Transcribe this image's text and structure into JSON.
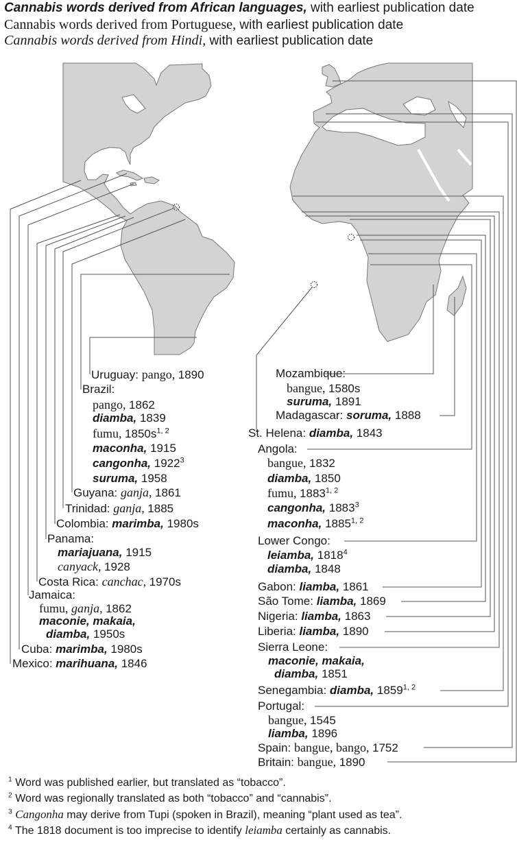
{
  "legend": [
    {
      "segs": [
        [
          "af",
          "Cannabis words derived from African languages,"
        ],
        [
          "n",
          " with earliest publication date"
        ]
      ]
    },
    {
      "segs": [
        [
          "pt",
          "Cannabis words derived from Portuguese,"
        ],
        [
          "n",
          " with earliest publication date"
        ]
      ]
    },
    {
      "segs": [
        [
          "hi",
          "Cannabis words derived from Hindi,"
        ],
        [
          "n",
          " with earliest publication date"
        ]
      ]
    }
  ],
  "colors": {
    "land": "#d3d3d3",
    "coast": "#777777",
    "leader_lines": "#555555"
  },
  "americas": [
    {
      "segs": [
        [
          "n",
          "Uruguay: "
        ],
        [
          "pt",
          "pango, "
        ],
        [
          "n",
          "1890"
        ]
      ]
    },
    {
      "segs": [
        [
          "n",
          "Brazil:"
        ]
      ]
    },
    {
      "segs": [
        [
          "pt",
          "pango, "
        ],
        [
          "n",
          "1862"
        ]
      ]
    },
    {
      "segs": [
        [
          "af",
          "diamba, "
        ],
        [
          "n",
          "1839"
        ]
      ]
    },
    {
      "segs": [
        [
          "pt",
          "fumu, "
        ],
        [
          "n",
          "1850s"
        ],
        [
          "sup",
          "1, 2"
        ]
      ]
    },
    {
      "segs": [
        [
          "af",
          "maconha, "
        ],
        [
          "n",
          "1915"
        ]
      ]
    },
    {
      "segs": [
        [
          "af",
          "cangonha, "
        ],
        [
          "n",
          "1922"
        ],
        [
          "sup",
          "3"
        ]
      ]
    },
    {
      "segs": [
        [
          "af",
          "suruma, "
        ],
        [
          "n",
          "1958"
        ]
      ]
    },
    {
      "segs": [
        [
          "n",
          "Guyana: "
        ],
        [
          "hi",
          "ganja, "
        ],
        [
          "n",
          "1861"
        ]
      ]
    },
    {
      "segs": [
        [
          "n",
          "Trinidad: "
        ],
        [
          "hi",
          "ganja, "
        ],
        [
          "n",
          "1885"
        ]
      ]
    },
    {
      "segs": [
        [
          "n",
          "Colombia: "
        ],
        [
          "af",
          "marimba, "
        ],
        [
          "n",
          "1980s"
        ]
      ]
    },
    {
      "segs": [
        [
          "n",
          "Panama:"
        ]
      ]
    },
    {
      "segs": [
        [
          "af",
          "mariajuana, "
        ],
        [
          "n",
          "1915"
        ]
      ]
    },
    {
      "segs": [
        [
          "hi",
          "canyack, "
        ],
        [
          "n",
          "1928"
        ]
      ]
    },
    {
      "segs": [
        [
          "n",
          "Costa Rica: "
        ],
        [
          "hi",
          "canchac, "
        ],
        [
          "n",
          "1970s"
        ]
      ]
    },
    {
      "segs": [
        [
          "n",
          "Jamaica:"
        ]
      ]
    },
    {
      "segs": [
        [
          "pt",
          "fumu, "
        ],
        [
          "hi",
          "ganja, "
        ],
        [
          "n",
          "1862"
        ]
      ]
    },
    {
      "segs": [
        [
          "af",
          "maconie, makaia,"
        ]
      ]
    },
    {
      "segs": [
        [
          "af",
          "diamba, "
        ],
        [
          "n",
          "1950s"
        ]
      ]
    },
    {
      "segs": [
        [
          "n",
          "Cuba: "
        ],
        [
          "af",
          "marimba, "
        ],
        [
          "n",
          "1980s"
        ]
      ]
    },
    {
      "segs": [
        [
          "n",
          "Mexico: "
        ],
        [
          "af",
          "marihuana, "
        ],
        [
          "n",
          "1846"
        ]
      ]
    }
  ],
  "africa_europe": [
    {
      "segs": [
        [
          "n",
          "Mozambique:"
        ]
      ]
    },
    {
      "segs": [
        [
          "pt",
          "bangue, "
        ],
        [
          "n",
          "1580s"
        ]
      ]
    },
    {
      "segs": [
        [
          "af",
          "suruma, "
        ],
        [
          "n",
          "1891"
        ]
      ]
    },
    {
      "segs": [
        [
          "n",
          "Madagascar: "
        ],
        [
          "af",
          "soruma, "
        ],
        [
          "n",
          "1888"
        ]
      ]
    },
    {
      "segs": [
        [
          "n",
          "St. Helena: "
        ],
        [
          "af",
          "diamba, "
        ],
        [
          "n",
          "1843"
        ]
      ]
    },
    {
      "segs": [
        [
          "n",
          "Angola:"
        ]
      ]
    },
    {
      "segs": [
        [
          "pt",
          "bangue, "
        ],
        [
          "n",
          "1832"
        ]
      ]
    },
    {
      "segs": [
        [
          "af",
          "diamba, "
        ],
        [
          "n",
          "1850"
        ]
      ]
    },
    {
      "segs": [
        [
          "pt",
          "fumu, "
        ],
        [
          "n",
          "1883"
        ],
        [
          "sup",
          "1, 2"
        ]
      ]
    },
    {
      "segs": [
        [
          "af",
          "cangonha, "
        ],
        [
          "n",
          "1883"
        ],
        [
          "sup",
          "3"
        ]
      ]
    },
    {
      "segs": [
        [
          "af",
          "maconha, "
        ],
        [
          "n",
          "1885"
        ],
        [
          "sup",
          "1, 2"
        ]
      ]
    },
    {
      "segs": [
        [
          "n",
          "Lower Congo:"
        ]
      ]
    },
    {
      "segs": [
        [
          "af",
          "leiamba, "
        ],
        [
          "n",
          "1818"
        ],
        [
          "sup",
          "4"
        ]
      ]
    },
    {
      "segs": [
        [
          "af",
          "diamba, "
        ],
        [
          "n",
          "1848"
        ]
      ]
    },
    {
      "segs": [
        [
          "n",
          "Gabon: "
        ],
        [
          "af",
          "liamba, "
        ],
        [
          "n",
          "1861"
        ]
      ]
    },
    {
      "segs": [
        [
          "n",
          "São Tome: "
        ],
        [
          "af",
          "liamba, "
        ],
        [
          "n",
          "1869"
        ]
      ]
    },
    {
      "segs": [
        [
          "n",
          "Nigeria: "
        ],
        [
          "af",
          "liamba, "
        ],
        [
          "n",
          "1863"
        ]
      ]
    },
    {
      "segs": [
        [
          "n",
          "Liberia: "
        ],
        [
          "af",
          "liamba, "
        ],
        [
          "n",
          "1890"
        ]
      ]
    },
    {
      "segs": [
        [
          "n",
          "Sierra Leone:"
        ]
      ]
    },
    {
      "segs": [
        [
          "af",
          "maconie, makaia,"
        ]
      ]
    },
    {
      "segs": [
        [
          "af",
          "diamba, "
        ],
        [
          "n",
          "1851"
        ]
      ]
    },
    {
      "segs": [
        [
          "n",
          "Senegambia: "
        ],
        [
          "af",
          "diamba, "
        ],
        [
          "n",
          "1859"
        ],
        [
          "sup",
          "1, 2"
        ]
      ]
    },
    {
      "segs": [
        [
          "n",
          "Portugal:"
        ]
      ]
    },
    {
      "segs": [
        [
          "pt",
          "bangue, "
        ],
        [
          "n",
          "1545"
        ]
      ]
    },
    {
      "segs": [
        [
          "af",
          "liamba, "
        ],
        [
          "n",
          "1896"
        ]
      ]
    },
    {
      "segs": [
        [
          "n",
          "Spain: "
        ],
        [
          "pt",
          "bangue, bango, "
        ],
        [
          "n",
          "1752"
        ]
      ]
    },
    {
      "segs": [
        [
          "n",
          "Britain: "
        ],
        [
          "pt",
          "bangue, "
        ],
        [
          "n",
          "1890"
        ]
      ]
    }
  ],
  "footnotes": [
    {
      "segs": [
        [
          "sup",
          "1"
        ],
        [
          "n",
          " Word was published earlier, but translated as “tobacco”."
        ]
      ]
    },
    {
      "segs": [
        [
          "sup",
          "2"
        ],
        [
          "n",
          " Word was regionally translated as both “tobacco” and “cannabis”."
        ]
      ]
    },
    {
      "segs": [
        [
          "sup",
          "3"
        ],
        [
          "n",
          " "
        ],
        [
          "hi",
          "Cangonha"
        ],
        [
          "n",
          " may derive from Tupi (spoken in Brazil), meaning “plant used as tea”."
        ]
      ]
    },
    {
      "segs": [
        [
          "sup",
          "4"
        ],
        [
          "n",
          " The 1818 document is too imprecise to identify "
        ],
        [
          "hi",
          "leiamba"
        ],
        [
          "n",
          " certainly as cannabis."
        ]
      ]
    }
  ]
}
